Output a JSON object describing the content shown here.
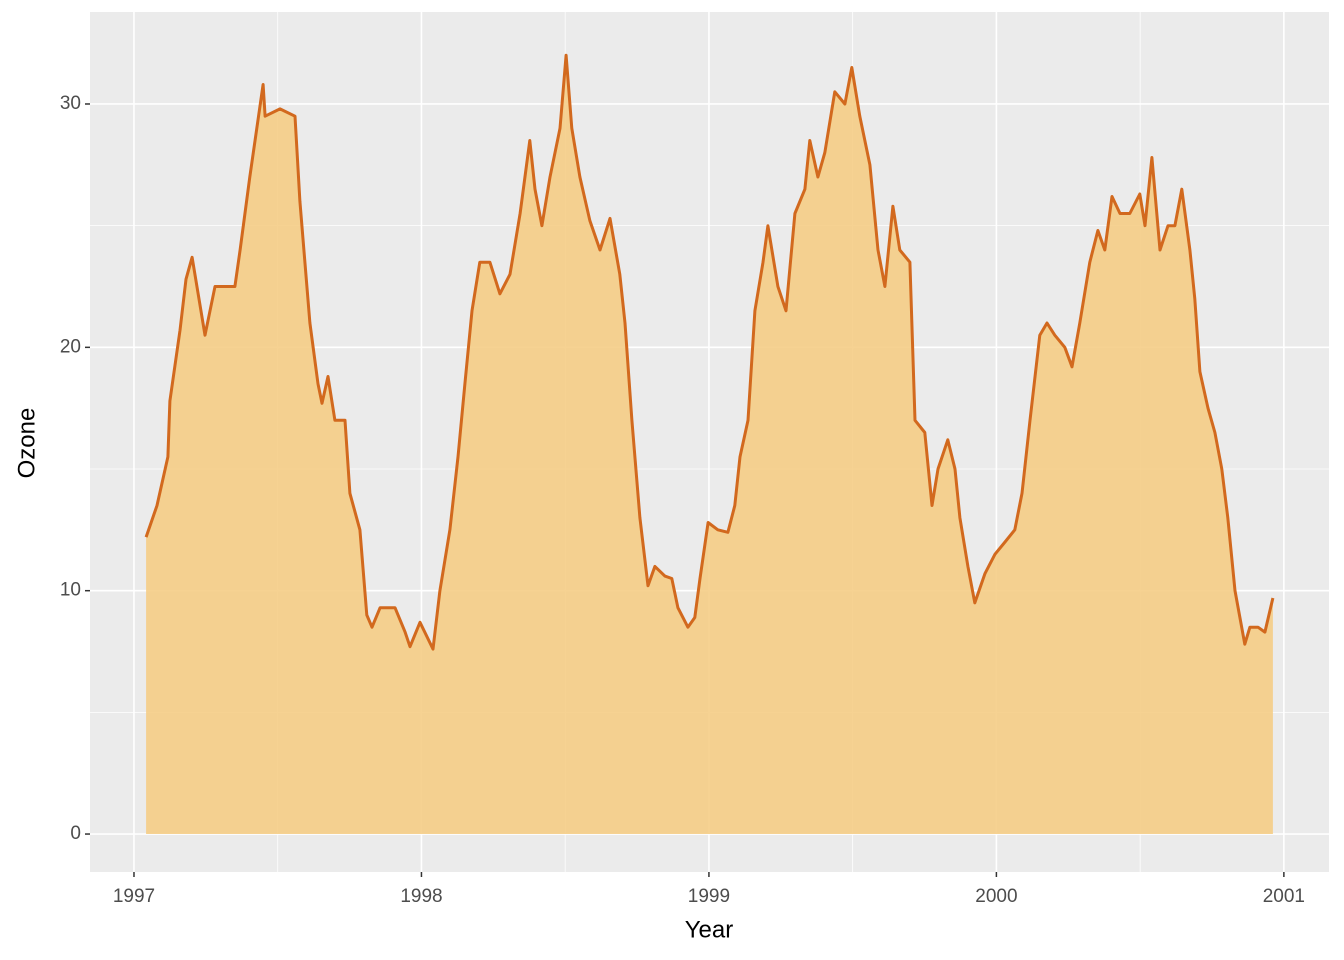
{
  "chart_data": {
    "type": "area",
    "x_label": "Year",
    "y_label": "Ozone",
    "x": [
      1997.042,
      1997.08,
      1997.118,
      1997.125,
      1997.16,
      1997.181,
      1997.202,
      1997.247,
      1997.282,
      1997.351,
      1997.369,
      1997.403,
      1997.449,
      1997.456,
      1997.508,
      1997.56,
      1997.577,
      1997.612,
      1997.64,
      1997.654,
      1997.675,
      1997.699,
      1997.734,
      1997.751,
      1997.786,
      1997.81,
      1997.828,
      1997.856,
      1997.908,
      1997.943,
      1997.96,
      1997.995,
      1998.04,
      1998.064,
      1998.099,
      1998.127,
      1998.151,
      1998.176,
      1998.203,
      1998.238,
      1998.273,
      1998.308,
      1998.343,
      1998.377,
      1998.395,
      1998.419,
      1998.447,
      1998.482,
      1998.503,
      1998.523,
      1998.551,
      1998.586,
      1998.621,
      1998.656,
      1998.69,
      1998.708,
      1998.732,
      1998.76,
      1998.788,
      1998.812,
      1998.847,
      1998.871,
      1998.892,
      1998.927,
      1998.951,
      1998.969,
      1998.997,
      1999.031,
      1999.066,
      1999.09,
      1999.108,
      1999.136,
      1999.16,
      1999.188,
      1999.205,
      1999.24,
      1999.268,
      1999.299,
      1999.334,
      1999.351,
      1999.379,
      1999.403,
      1999.438,
      1999.473,
      1999.497,
      1999.525,
      1999.56,
      1999.588,
      1999.612,
      1999.64,
      1999.664,
      1999.699,
      1999.717,
      1999.751,
      1999.776,
      1999.797,
      1999.831,
      1999.856,
      1999.873,
      1999.901,
      1999.925,
      1999.96,
      1999.995,
      2000.03,
      2000.064,
      2000.089,
      2000.117,
      2000.151,
      2000.176,
      2000.203,
      2000.238,
      2000.263,
      2000.29,
      2000.325,
      2000.353,
      2000.377,
      2000.402,
      2000.43,
      2000.464,
      2000.499,
      2000.517,
      2000.541,
      2000.569,
      2000.597,
      2000.621,
      2000.645,
      2000.673,
      2000.69,
      2000.708,
      2000.736,
      2000.76,
      2000.784,
      2000.805,
      2000.83,
      2000.864,
      2000.882,
      2000.91,
      2000.934,
      2000.962
    ],
    "values": [
      12.2,
      13.5,
      15.5,
      17.8,
      20.7,
      22.8,
      23.7,
      20.5,
      22.5,
      22.5,
      24,
      27,
      30.8,
      29.5,
      29.8,
      29.5,
      26,
      21,
      18.5,
      17.7,
      18.8,
      17,
      17,
      14,
      12.5,
      9,
      8.5,
      9.3,
      9.3,
      8.3,
      7.7,
      8.7,
      7.6,
      10,
      12.5,
      15.5,
      18.5,
      21.5,
      23.5,
      23.5,
      22.2,
      23,
      25.5,
      28.5,
      26.5,
      25,
      27,
      29,
      32,
      29,
      27,
      25.2,
      24,
      25.3,
      23,
      21,
      17,
      13,
      10.2,
      11,
      10.6,
      10.5,
      9.3,
      8.5,
      8.9,
      10.5,
      12.8,
      12.5,
      12.4,
      13.5,
      15.5,
      17,
      21.5,
      23.5,
      25,
      22.5,
      21.5,
      25.5,
      26.5,
      28.5,
      27,
      28,
      30.5,
      30,
      31.5,
      29.5,
      27.5,
      24,
      22.5,
      25.8,
      24,
      23.5,
      17,
      16.5,
      13.5,
      15,
      16.2,
      15,
      13,
      11,
      9.5,
      10.7,
      11.5,
      12,
      12.5,
      14,
      17,
      20.5,
      21,
      20.5,
      20,
      19.2,
      21,
      23.5,
      24.8,
      24,
      26.2,
      25.5,
      25.5,
      26.3,
      25,
      27.8,
      24,
      25,
      25,
      26.5,
      24,
      22,
      19,
      17.5,
      16.5,
      15,
      13,
      10,
      7.8,
      8.5,
      8.5,
      8.3,
      9.7
    ],
    "color": "#d2691e",
    "fill": "#f5cd86",
    "xlim": [
      1996.847,
      2001.157
    ],
    "ylim": [
      -1.56,
      33.78
    ],
    "xticks": [
      1997,
      1998,
      1999,
      2000,
      2001
    ],
    "yticks": [
      0,
      10,
      20,
      30
    ],
    "xminor": [
      1997.5,
      1998.5,
      1999.5,
      2000.5
    ],
    "yminor": [
      5,
      15,
      25
    ],
    "grid": true
  }
}
